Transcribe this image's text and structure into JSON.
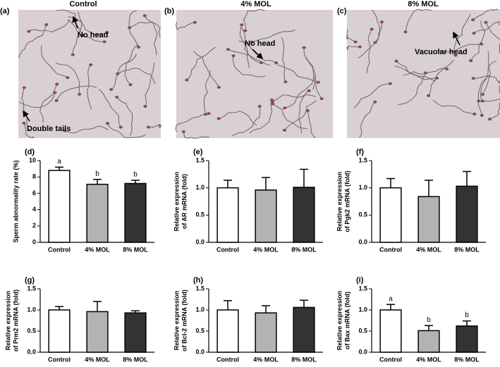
{
  "images": [
    {
      "label": "(a)",
      "title": "Control",
      "annotations": [
        "No head",
        "Double tails"
      ]
    },
    {
      "label": "(b)",
      "title": "4% MOL",
      "annotations": [
        "No head"
      ]
    },
    {
      "label": "(c)",
      "title": "8% MOL",
      "annotations": [
        "Vacuolar head"
      ]
    }
  ],
  "chart_data": [
    {
      "type": "bar",
      "label": "(d)",
      "ylabel": [
        "Sperm abnormality rate (%)"
      ],
      "categories": [
        "Control",
        "4% MOL",
        "8% MOL"
      ],
      "values": [
        8.8,
        7.1,
        7.2
      ],
      "errors": [
        0.4,
        0.6,
        0.4
      ],
      "letters": [
        "a",
        "b",
        "b"
      ],
      "colors": [
        "#ffffff",
        "#b3b3b3",
        "#333333"
      ],
      "ylim": [
        0,
        10
      ],
      "yticks": [
        0,
        2,
        4,
        6,
        8,
        10
      ]
    },
    {
      "type": "bar",
      "label": "(e)",
      "ylabel": [
        "Relative expression",
        "of AR mRNA (fold)"
      ],
      "categories": [
        "Control",
        "4% MOL",
        "8% MOL"
      ],
      "values": [
        1.0,
        0.96,
        1.01
      ],
      "errors": [
        0.14,
        0.23,
        0.33
      ],
      "colors": [
        "#ffffff",
        "#b3b3b3",
        "#333333"
      ],
      "ylim": [
        0,
        1.5
      ],
      "yticks": [
        {
          "value": 0,
          "label": "0.0"
        },
        {
          "value": 0.5,
          "label": "0.5"
        },
        {
          "value": 1,
          "label": "1.0"
        },
        {
          "value": 1.5,
          "label": "1.5"
        }
      ]
    },
    {
      "type": "bar",
      "label": "(f)",
      "ylabel": [
        "Relative expression",
        "of Pgk2 mRNA (fold)"
      ],
      "categories": [
        "Control",
        "4% MOL",
        "8% MOL"
      ],
      "values": [
        1.0,
        0.84,
        1.03
      ],
      "errors": [
        0.17,
        0.3,
        0.27
      ],
      "colors": [
        "#ffffff",
        "#b3b3b3",
        "#333333"
      ],
      "ylim": [
        0,
        1.5
      ],
      "yticks": [
        {
          "value": 0,
          "label": "0.0"
        },
        {
          "value": 0.5,
          "label": "0.5"
        },
        {
          "value": 1,
          "label": "1.0"
        },
        {
          "value": 1.5,
          "label": "1.5"
        }
      ]
    },
    {
      "type": "bar",
      "label": "(g)",
      "ylabel": [
        "Relative expression",
        "of Prm2 mRNA (fold)"
      ],
      "categories": [
        "Control",
        "4% MOL",
        "8% MOL"
      ],
      "values": [
        1.0,
        0.96,
        0.93
      ],
      "errors": [
        0.08,
        0.24,
        0.05
      ],
      "colors": [
        "#ffffff",
        "#b3b3b3",
        "#333333"
      ],
      "ylim": [
        0,
        1.5
      ],
      "yticks": [
        {
          "value": 0,
          "label": "0.0"
        },
        {
          "value": 0.5,
          "label": "0.5"
        },
        {
          "value": 1,
          "label": "1.0"
        },
        {
          "value": 1.5,
          "label": "1.5"
        }
      ]
    },
    {
      "type": "bar",
      "label": "(h)",
      "ylabel": [
        "Relative expression",
        "of Bcl-2 mRNA (fold)"
      ],
      "categories": [
        "Control",
        "4% MOL",
        "8% MOL"
      ],
      "values": [
        1.0,
        0.93,
        1.06
      ],
      "errors": [
        0.22,
        0.17,
        0.17
      ],
      "colors": [
        "#ffffff",
        "#b3b3b3",
        "#333333"
      ],
      "ylim": [
        0,
        1.5
      ],
      "yticks": [
        {
          "value": 0,
          "label": "0.0"
        },
        {
          "value": 0.5,
          "label": "0.5"
        },
        {
          "value": 1,
          "label": "1.0"
        },
        {
          "value": 1.5,
          "label": "1.5"
        }
      ]
    },
    {
      "type": "bar",
      "label": "(i)",
      "ylabel": [
        "Relative expression",
        "of Bax mRNA (fold)"
      ],
      "categories": [
        "Control",
        "4% MOL",
        "8% MOL"
      ],
      "values": [
        1.0,
        0.51,
        0.62
      ],
      "errors": [
        0.13,
        0.12,
        0.12
      ],
      "letters": [
        "a",
        "b",
        "b"
      ],
      "colors": [
        "#ffffff",
        "#b3b3b3",
        "#333333"
      ],
      "ylim": [
        0,
        1.5
      ],
      "yticks": [
        {
          "value": 0,
          "label": "0.0"
        },
        {
          "value": 0.5,
          "label": "0.5"
        },
        {
          "value": 1,
          "label": "1.0"
        },
        {
          "value": 1.5,
          "label": "1.5"
        }
      ]
    }
  ]
}
